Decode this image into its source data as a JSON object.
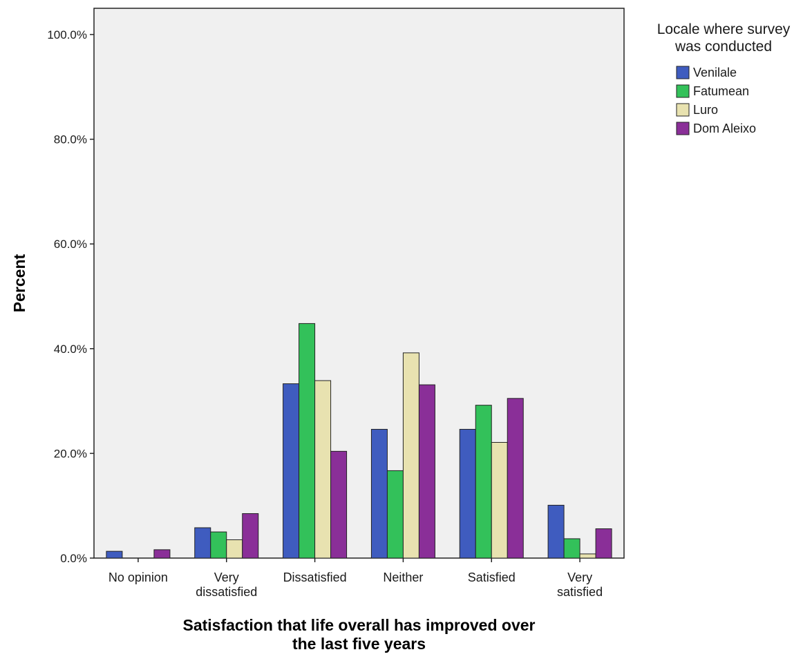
{
  "chart_data": {
    "type": "bar",
    "title": "",
    "xlabel_lines": [
      "Satisfaction that life overall has improved over",
      "the last five years"
    ],
    "ylabel": "Percent",
    "ylim": [
      0,
      100
    ],
    "yticks": [
      {
        "value": 0,
        "label": "0.0%"
      },
      {
        "value": 20,
        "label": "20.0%"
      },
      {
        "value": 40,
        "label": "40.0%"
      },
      {
        "value": 60,
        "label": "60.0%"
      },
      {
        "value": 80,
        "label": "80.0%"
      },
      {
        "value": 100,
        "label": "100.0%"
      }
    ],
    "categories": [
      {
        "lines": [
          "No opinion"
        ]
      },
      {
        "lines": [
          "Very",
          "dissatisfied"
        ]
      },
      {
        "lines": [
          "Dissatisfied"
        ]
      },
      {
        "lines": [
          "Neither"
        ]
      },
      {
        "lines": [
          "Satisfied"
        ]
      },
      {
        "lines": [
          "Very",
          "satisfied"
        ]
      }
    ],
    "legend": {
      "title_lines": [
        "Locale where survey",
        "was conducted"
      ],
      "position": "right"
    },
    "series": [
      {
        "name": "Venilale",
        "color": "#3f5cbf",
        "values": [
          1.3,
          5.8,
          33.3,
          24.6,
          24.6,
          10.1
        ]
      },
      {
        "name": "Fatumean",
        "color": "#33c15a",
        "values": [
          0.0,
          5.0,
          44.8,
          16.7,
          29.2,
          3.7
        ]
      },
      {
        "name": "Luro",
        "color": "#e8e2b0",
        "values": [
          0.0,
          3.5,
          33.9,
          39.2,
          22.1,
          0.8
        ]
      },
      {
        "name": "Dom Aleixo",
        "color": "#8a2f98",
        "values": [
          1.6,
          8.5,
          20.4,
          33.1,
          30.5,
          5.6
        ]
      }
    ],
    "grid": false,
    "plot_background": "#f0f0f0"
  }
}
